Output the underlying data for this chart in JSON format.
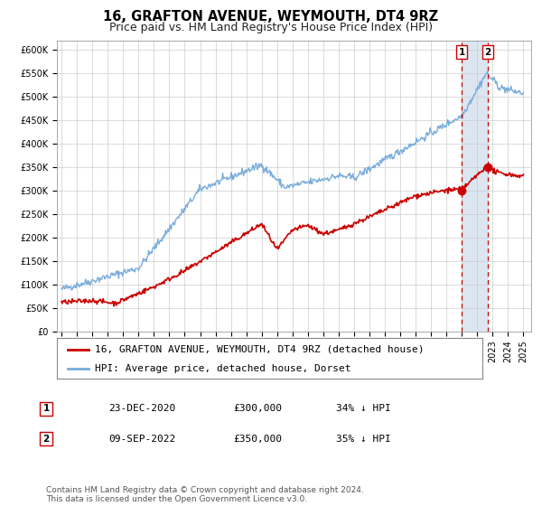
{
  "title": "16, GRAFTON AVENUE, WEYMOUTH, DT4 9RZ",
  "subtitle": "Price paid vs. HM Land Registry's House Price Index (HPI)",
  "ylim": [
    0,
    620000
  ],
  "xlim_start": 1994.7,
  "xlim_end": 2025.5,
  "yticks": [
    0,
    50000,
    100000,
    150000,
    200000,
    250000,
    300000,
    350000,
    400000,
    450000,
    500000,
    550000,
    600000
  ],
  "ytick_labels": [
    "£0",
    "£50K",
    "£100K",
    "£150K",
    "£200K",
    "£250K",
    "£300K",
    "£350K",
    "£400K",
    "£450K",
    "£500K",
    "£550K",
    "£600K"
  ],
  "xtick_years": [
    1995,
    1996,
    1997,
    1998,
    1999,
    2000,
    2001,
    2002,
    2003,
    2004,
    2005,
    2006,
    2007,
    2008,
    2009,
    2010,
    2011,
    2012,
    2013,
    2014,
    2015,
    2016,
    2017,
    2018,
    2019,
    2020,
    2021,
    2022,
    2023,
    2024,
    2025
  ],
  "hpi_color": "#7aaddc",
  "price_color": "#cc0000",
  "dashed_line_color": "#cc0000",
  "shade_color": "#dce6f1",
  "event1_x": 2020.98,
  "event1_y": 300000,
  "event2_x": 2022.69,
  "event2_y": 350000,
  "legend_property_label": "16, GRAFTON AVENUE, WEYMOUTH, DT4 9RZ (detached house)",
  "legend_hpi_label": "HPI: Average price, detached house, Dorset",
  "table_row1": [
    "1",
    "23-DEC-2020",
    "£300,000",
    "34% ↓ HPI"
  ],
  "table_row2": [
    "2",
    "09-SEP-2022",
    "£350,000",
    "35% ↓ HPI"
  ],
  "footer_text": "Contains HM Land Registry data © Crown copyright and database right 2024.\nThis data is licensed under the Open Government Licence v3.0.",
  "bg_color": "#ffffff",
  "grid_color": "#cccccc",
  "title_fontsize": 10.5,
  "subtitle_fontsize": 9,
  "tick_fontsize": 7,
  "legend_fontsize": 8,
  "footer_fontsize": 6.5
}
